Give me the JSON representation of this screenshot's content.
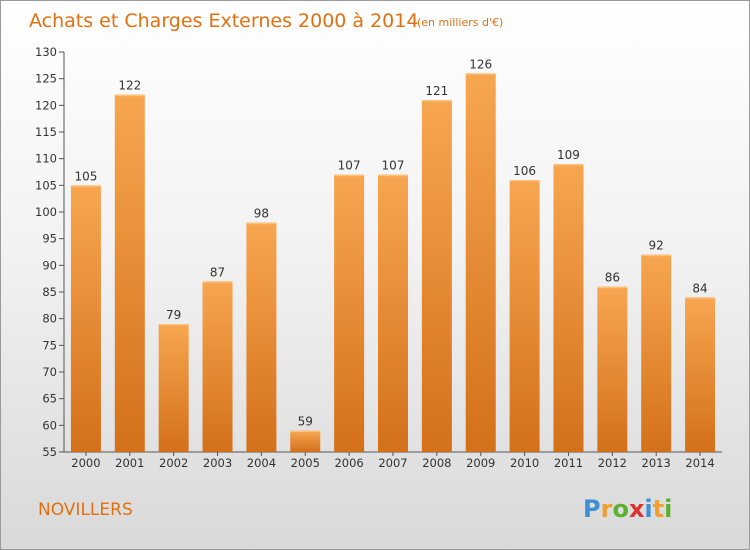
{
  "chart_data": {
    "type": "bar",
    "title": "Achats et Charges Externes 2000 à 2014",
    "subtitle": "(en milliers d'€)",
    "categories": [
      "2000",
      "2001",
      "2002",
      "2003",
      "2004",
      "2005",
      "2006",
      "2007",
      "2008",
      "2009",
      "2010",
      "2011",
      "2012",
      "2013",
      "2014"
    ],
    "values": [
      105,
      122,
      79,
      87,
      98,
      59,
      107,
      107,
      121,
      126,
      106,
      109,
      86,
      92,
      84
    ],
    "xlabel": "",
    "ylabel": "",
    "ylim": [
      55,
      130
    ],
    "yticks": [
      55,
      60,
      65,
      70,
      75,
      80,
      85,
      90,
      95,
      100,
      105,
      110,
      115,
      120,
      125,
      130
    ],
    "grid": false,
    "bar_color": "#f5a04a",
    "bar_color_dark": "#d8761e"
  },
  "footer": {
    "commune": "NOVILLERS",
    "logo": {
      "letters": [
        "P",
        "r",
        "o",
        "x",
        "i",
        "t",
        "i"
      ],
      "colors": [
        "#3d8fd6",
        "#f0a030",
        "#5cb030",
        "#e03030",
        "#3d8fd6",
        "#f0a030",
        "#5cb030"
      ]
    }
  }
}
